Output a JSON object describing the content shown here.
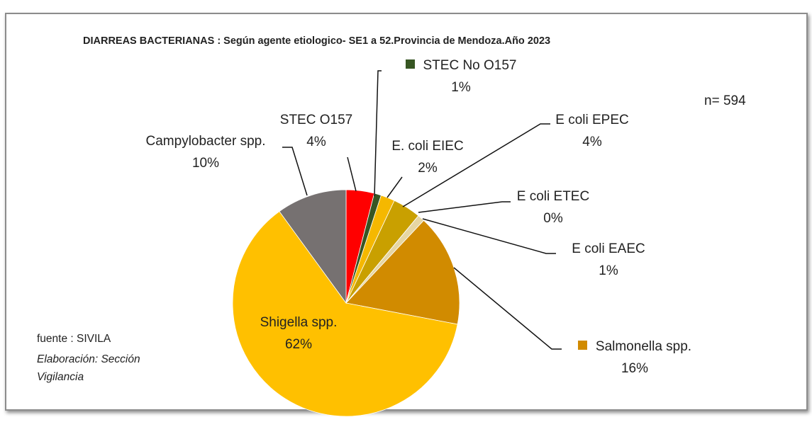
{
  "chart_data": {
    "type": "pie",
    "title": "DIARREAS BACTERIANAS : Según agente etiologico- SE1 a 52.Provincia de Mendoza.Año 2023",
    "categories": [
      "STEC O157",
      "STEC No O157",
      "E. coli EIEC",
      "E coli EPEC",
      "E coli ETEC",
      "E coli EAEC",
      "Salmonella spp.",
      "Shigella spp.",
      "Campylobacter spp."
    ],
    "values": [
      4,
      1,
      2,
      4,
      0,
      1,
      16,
      62,
      10
    ],
    "value_labels": [
      "4%",
      "1%",
      "2%",
      "4%",
      "0%",
      "1%",
      "16%",
      "62%",
      "10%"
    ],
    "colors": [
      "#ff0000",
      "#375623",
      "#f5b800",
      "#c9a000",
      "#ffe699",
      "#e6d6a3",
      "#d18b00",
      "#ffc000",
      "#767171"
    ],
    "annotations": [
      "n= 594",
      "fuente : SIVILA",
      "Elaboración: Sección Vigilancia"
    ]
  }
}
